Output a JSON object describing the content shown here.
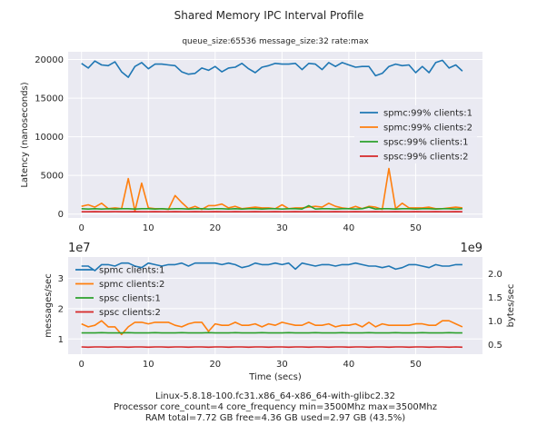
{
  "title": "Shared Memory IPC Interval Profile",
  "subtitle": "queue_size:65536 message_size:32 rate:max",
  "footer": [
    "Linux-5.8.18-100.fc31.x86_64-x86_64-with-glibc2.32",
    "Processor core_count=4 core_frequency min=3500Mhz max=3500Mhz",
    "RAM total=7.72 GB free=4.36 GB used=2.97 GB (43.5%)"
  ],
  "colors": {
    "blue": "#1f77b4",
    "orange": "#ff7f0e",
    "green": "#2ca02c",
    "red": "#d62728",
    "panel": "#eaeaf2",
    "grid": "#ffffff"
  },
  "chart_data": [
    {
      "type": "line",
      "title": "queue_size:65536 message_size:32 rate:max",
      "xlabel": "",
      "ylabel": "Latency (nanoseconds)",
      "xlim": [
        -2,
        60
      ],
      "ylim": [
        -500,
        21000
      ],
      "xticks": [
        0,
        10,
        20,
        30,
        40,
        50
      ],
      "yticks": [
        0,
        5000,
        10000,
        15000,
        20000
      ],
      "grid": true,
      "legend": "center-right",
      "x": [
        0,
        1,
        2,
        3,
        4,
        5,
        6,
        7,
        8,
        9,
        10,
        11,
        12,
        13,
        14,
        15,
        16,
        17,
        18,
        19,
        20,
        21,
        22,
        23,
        24,
        25,
        26,
        27,
        28,
        29,
        30,
        31,
        32,
        33,
        34,
        35,
        36,
        37,
        38,
        39,
        40,
        41,
        42,
        43,
        44,
        45,
        46,
        47,
        48,
        49,
        50,
        51,
        52,
        53,
        54,
        55,
        56,
        57
      ],
      "series": [
        {
          "name": "spmc:99% clients:1",
          "color": "#1f77b4",
          "values": [
            19500,
            18900,
            19800,
            19300,
            19200,
            19700,
            18400,
            17700,
            19100,
            19600,
            18800,
            19400,
            19400,
            19300,
            19200,
            18400,
            18100,
            18200,
            18900,
            18600,
            19100,
            18400,
            18900,
            19000,
            19500,
            18800,
            18300,
            19000,
            19200,
            19500,
            19400,
            19400,
            19500,
            18700,
            19500,
            19400,
            18700,
            19600,
            19100,
            19600,
            19300,
            19000,
            19100,
            19100,
            17900,
            18200,
            19100,
            19400,
            19200,
            19300,
            18300,
            19100,
            18300,
            19600,
            19900,
            18900,
            19300,
            18500
          ]
        },
        {
          "name": "spmc:99% clients:2",
          "color": "#ff7f0e",
          "values": [
            1000,
            1200,
            900,
            1400,
            700,
            800,
            700,
            4600,
            400,
            4000,
            800,
            700,
            700,
            600,
            2400,
            1500,
            700,
            1000,
            600,
            1100,
            1100,
            1300,
            800,
            1000,
            700,
            800,
            900,
            800,
            800,
            700,
            1200,
            700,
            800,
            800,
            900,
            1000,
            900,
            1400,
            1000,
            800,
            700,
            1000,
            700,
            1000,
            900,
            600,
            5900,
            700,
            1400,
            800,
            800,
            800,
            900,
            700,
            700,
            800,
            900,
            800
          ]
        },
        {
          "name": "spsc:99% clients:1",
          "color": "#2ca02c",
          "values": [
            700,
            650,
            700,
            650,
            700,
            650,
            700,
            700,
            650,
            700,
            700,
            650,
            700,
            650,
            700,
            700,
            650,
            700,
            700,
            650,
            700,
            700,
            650,
            700,
            650,
            700,
            700,
            650,
            700,
            700,
            650,
            700,
            700,
            650,
            1100,
            650,
            700,
            700,
            650,
            700,
            700,
            650,
            700,
            900,
            650,
            700,
            700,
            650,
            700,
            700,
            650,
            700,
            700,
            650,
            700,
            700,
            650,
            700
          ]
        },
        {
          "name": "spsc:99% clients:2",
          "color": "#d62728",
          "values": [
            300,
            300,
            310,
            300,
            300,
            310,
            300,
            300,
            310,
            300,
            300,
            310,
            300,
            300,
            310,
            300,
            300,
            310,
            300,
            300,
            310,
            300,
            300,
            310,
            300,
            300,
            310,
            300,
            300,
            310,
            300,
            300,
            310,
            300,
            300,
            310,
            300,
            300,
            310,
            300,
            300,
            310,
            300,
            300,
            310,
            300,
            300,
            310,
            300,
            300,
            310,
            300,
            300,
            310,
            300,
            300,
            310,
            300
          ]
        }
      ]
    },
    {
      "type": "line",
      "title": "",
      "xlabel": "Time (secs)",
      "ylabel": "messages/sec",
      "ylabel_right": "bytes/sec",
      "y_offset_left": "1e7",
      "y_offset_right": "1e9",
      "xlim": [
        -2,
        60
      ],
      "ylim": [
        0.5,
        3.7
      ],
      "ylim_right": [
        0.3,
        2.35
      ],
      "xticks": [
        0,
        10,
        20,
        30,
        40,
        50
      ],
      "yticks": [
        1,
        2,
        3
      ],
      "yticks_right": [
        0.5,
        1.0,
        1.5,
        2.0
      ],
      "ytick_labels_right": [
        "0.5",
        "1.0",
        "1.5",
        "2.0"
      ],
      "grid": true,
      "legend": "top-left",
      "x": [
        0,
        1,
        2,
        3,
        4,
        5,
        6,
        7,
        8,
        9,
        10,
        11,
        12,
        13,
        14,
        15,
        16,
        17,
        18,
        19,
        20,
        21,
        22,
        23,
        24,
        25,
        26,
        27,
        28,
        29,
        30,
        31,
        32,
        33,
        34,
        35,
        36,
        37,
        38,
        39,
        40,
        41,
        42,
        43,
        44,
        45,
        46,
        47,
        48,
        49,
        50,
        51,
        52,
        53,
        54,
        55,
        56,
        57
      ],
      "series": [
        {
          "name": "spmc clients:1",
          "color": "#1f77b4",
          "values": [
            3.4,
            3.4,
            3.25,
            3.45,
            3.45,
            3.4,
            3.5,
            3.5,
            3.4,
            3.35,
            3.5,
            3.45,
            3.4,
            3.45,
            3.45,
            3.5,
            3.4,
            3.5,
            3.5,
            3.5,
            3.5,
            3.45,
            3.5,
            3.45,
            3.35,
            3.4,
            3.5,
            3.45,
            3.45,
            3.5,
            3.45,
            3.5,
            3.3,
            3.5,
            3.45,
            3.4,
            3.45,
            3.45,
            3.4,
            3.45,
            3.45,
            3.5,
            3.45,
            3.4,
            3.4,
            3.35,
            3.4,
            3.3,
            3.35,
            3.45,
            3.45,
            3.4,
            3.35,
            3.45,
            3.4,
            3.4,
            3.45,
            3.45
          ]
        },
        {
          "name": "spmc clients:2",
          "color": "#ff7f0e",
          "values": [
            1.5,
            1.4,
            1.45,
            1.6,
            1.4,
            1.4,
            1.15,
            1.4,
            1.55,
            1.55,
            1.5,
            1.55,
            1.55,
            1.55,
            1.45,
            1.4,
            1.5,
            1.55,
            1.55,
            1.25,
            1.5,
            1.45,
            1.45,
            1.55,
            1.45,
            1.45,
            1.5,
            1.4,
            1.5,
            1.45,
            1.55,
            1.5,
            1.45,
            1.45,
            1.55,
            1.45,
            1.45,
            1.5,
            1.4,
            1.45,
            1.45,
            1.5,
            1.4,
            1.55,
            1.4,
            1.5,
            1.45,
            1.45,
            1.45,
            1.45,
            1.5,
            1.5,
            1.45,
            1.45,
            1.6,
            1.6,
            1.5,
            1.4
          ]
        },
        {
          "name": "spsc clients:1",
          "color": "#2ca02c",
          "values": [
            1.2,
            1.2,
            1.2,
            1.21,
            1.2,
            1.2,
            1.2,
            1.21,
            1.2,
            1.2,
            1.2,
            1.21,
            1.2,
            1.2,
            1.2,
            1.21,
            1.2,
            1.2,
            1.2,
            1.21,
            1.2,
            1.2,
            1.2,
            1.21,
            1.2,
            1.2,
            1.2,
            1.21,
            1.2,
            1.2,
            1.2,
            1.21,
            1.2,
            1.2,
            1.2,
            1.21,
            1.2,
            1.2,
            1.2,
            1.21,
            1.2,
            1.2,
            1.2,
            1.21,
            1.2,
            1.2,
            1.2,
            1.21,
            1.2,
            1.2,
            1.2,
            1.21,
            1.2,
            1.2,
            1.2,
            1.21,
            1.2,
            1.2
          ]
        },
        {
          "name": "spsc clients:2",
          "color": "#d62728",
          "values": [
            0.74,
            0.73,
            0.74,
            0.74,
            0.73,
            0.74,
            0.74,
            0.73,
            0.74,
            0.74,
            0.73,
            0.74,
            0.74,
            0.73,
            0.74,
            0.74,
            0.73,
            0.74,
            0.74,
            0.73,
            0.74,
            0.74,
            0.73,
            0.74,
            0.74,
            0.73,
            0.74,
            0.74,
            0.73,
            0.74,
            0.74,
            0.73,
            0.74,
            0.74,
            0.73,
            0.74,
            0.74,
            0.73,
            0.74,
            0.74,
            0.73,
            0.74,
            0.74,
            0.73,
            0.74,
            0.74,
            0.73,
            0.74,
            0.74,
            0.73,
            0.74,
            0.74,
            0.73,
            0.74,
            0.74,
            0.73,
            0.74,
            0.73
          ]
        }
      ]
    }
  ]
}
